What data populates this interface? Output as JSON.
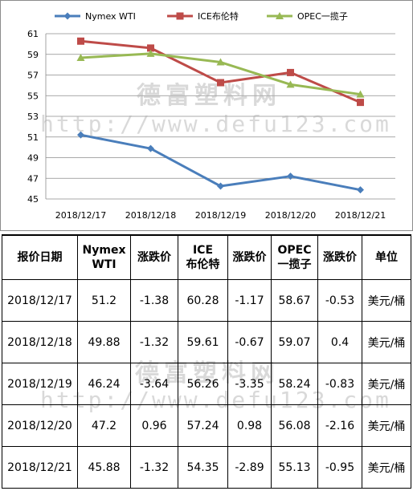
{
  "chart_data": {
    "type": "line",
    "categories": [
      "2018/12/17",
      "2018/12/18",
      "2018/12/19",
      "2018/12/20",
      "2018/12/21"
    ],
    "series": [
      {
        "name": "Nymex WTI",
        "color": "#4a7ebb",
        "marker": "diamond",
        "values": [
          51.2,
          49.88,
          46.24,
          47.2,
          45.88
        ]
      },
      {
        "name": "ICE布伦特",
        "color": "#be4b48",
        "marker": "square",
        "values": [
          60.28,
          59.61,
          56.26,
          57.24,
          54.35
        ]
      },
      {
        "name": "OPEC一揽子",
        "color": "#98b954",
        "marker": "triangle",
        "values": [
          58.67,
          59.07,
          58.24,
          56.08,
          55.13
        ]
      }
    ],
    "yticks": [
      45,
      47,
      49,
      51,
      53,
      55,
      57,
      59,
      61
    ],
    "ylim": [
      45,
      61
    ],
    "grid": true,
    "legend_position": "top"
  },
  "watermark": {
    "cn": "德富塑料网",
    "url": "http://www.defu123.com"
  },
  "table": {
    "headers": [
      [
        "报价日期"
      ],
      [
        "Nymex",
        "WTI"
      ],
      [
        "涨跌价"
      ],
      [
        "ICE",
        "布伦特"
      ],
      [
        "涨跌价"
      ],
      [
        "OPEC",
        "一揽子"
      ],
      [
        "涨跌价"
      ],
      [
        "单位"
      ]
    ],
    "rows": [
      [
        "2018/12/17",
        "51.2",
        "-1.38",
        "60.28",
        "-1.17",
        "58.67",
        "-0.53",
        "美元/桶"
      ],
      [
        "2018/12/18",
        "49.88",
        "-1.32",
        "59.61",
        "-0.67",
        "59.07",
        "0.4",
        "美元/桶"
      ],
      [
        "2018/12/19",
        "46.24",
        "-3.64",
        "56.26",
        "-3.35",
        "58.24",
        "-0.83",
        "美元/桶"
      ],
      [
        "2018/12/20",
        "47.2",
        "0.96",
        "57.24",
        "0.98",
        "56.08",
        "-2.16",
        "美元/桶"
      ],
      [
        "2018/12/21",
        "45.88",
        "-1.32",
        "54.35",
        "-2.89",
        "55.13",
        "-0.95",
        "美元/桶"
      ]
    ]
  }
}
